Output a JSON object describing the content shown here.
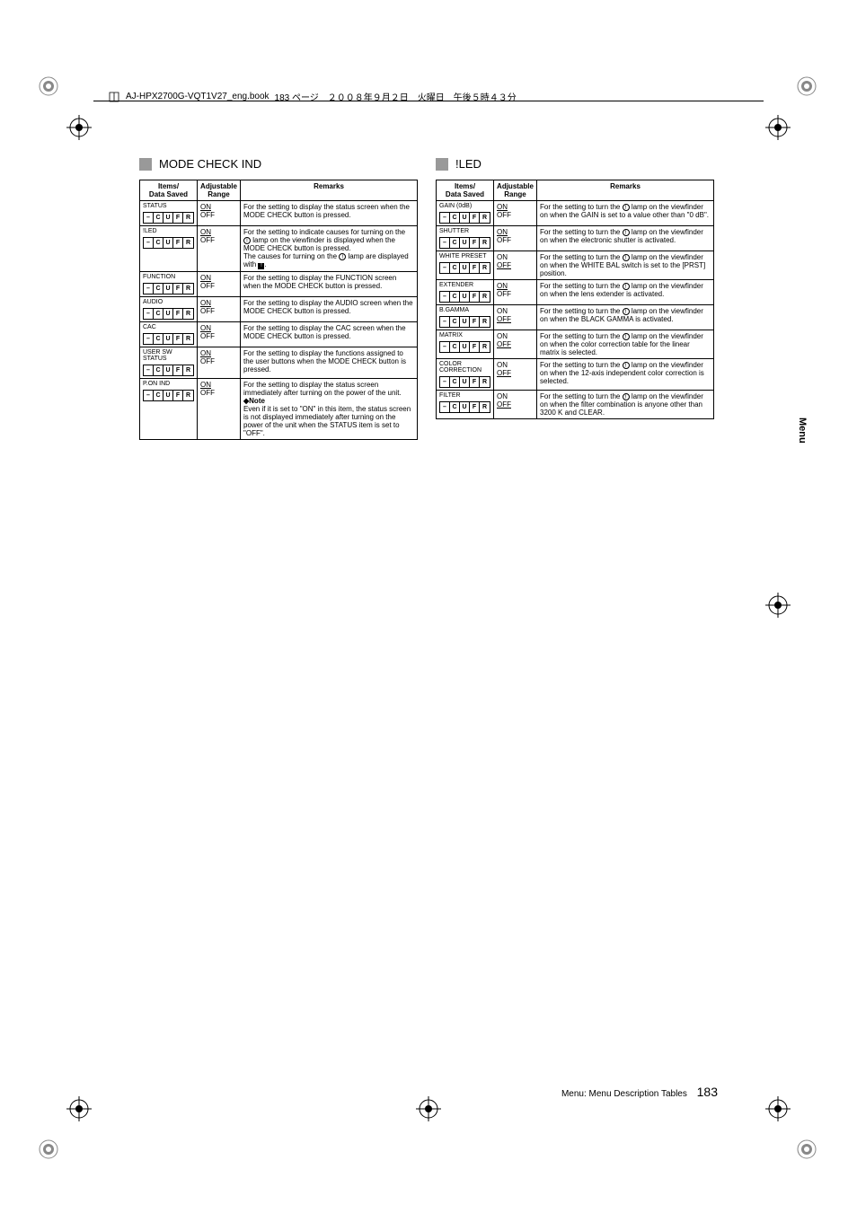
{
  "header": {
    "bookfile": "AJ-HPX2700G-VQT1V27_eng.book",
    "pageinfo": "183 ページ　２００８年９月２日　火曜日　午後５時４３分"
  },
  "sideTab": "Menu",
  "footer": {
    "text": "Menu: Menu Description Tables",
    "page": "183"
  },
  "left": {
    "title": "MODE CHECK IND",
    "headers": {
      "items": "Items/\nData Saved",
      "range": "Adjustable\nRange",
      "remarks": "Remarks"
    },
    "rows": [
      {
        "item": "STATUS",
        "rangeDefault": "ON",
        "rangeOther": "OFF",
        "remarks": "For the setting to display the status screen when the MODE CHECK button is pressed."
      },
      {
        "item": "!LED",
        "rangeDefault": "ON",
        "rangeOther": "OFF",
        "remarks": "For the setting to indicate causes for turning on the ⚠ lamp on the viewfinder is displayed when the MODE CHECK button is pressed.\nThe causes for turning on the ⚠ lamp are displayed with ▮."
      },
      {
        "item": "FUNCTION",
        "rangeDefault": "ON",
        "rangeOther": "OFF",
        "remarks": "For the setting to display the FUNCTION screen when the MODE CHECK button is pressed."
      },
      {
        "item": "AUDIO",
        "rangeDefault": "ON",
        "rangeOther": "OFF",
        "remarks": "For the setting to display the AUDIO screen when the MODE CHECK button is pressed."
      },
      {
        "item": "CAC",
        "rangeDefault": "ON",
        "rangeOther": "OFF",
        "remarks": "For the setting to display the CAC screen when the MODE CHECK button is pressed."
      },
      {
        "item": "USER SW STATUS",
        "rangeDefault": "ON",
        "rangeOther": "OFF",
        "remarks": "For the setting to display the functions assigned to the user buttons when the MODE CHECK button is pressed."
      },
      {
        "item": "P.ON IND",
        "rangeDefault": "ON",
        "rangeOther": "OFF",
        "remarks": "For the setting to display the status screen immediately after turning on the power of the unit.\n◆Note\nEven if it is set to \"ON\" in this item, the status screen is not displayed immediately after turning on the power of the unit when the STATUS item is set to \"OFF\"."
      }
    ]
  },
  "right": {
    "title": "!LED",
    "headers": {
      "items": "Items/\nData Saved",
      "range": "Adjustable\nRange",
      "remarks": "Remarks"
    },
    "rows": [
      {
        "item": "GAIN (0dB)",
        "rangeDefault": "ON",
        "rangeOther": "OFF",
        "remarks": "For the setting to turn the ⚠ lamp on the viewfinder on when the GAIN is set to a value other than \"0 dB\"."
      },
      {
        "item": "SHUTTER",
        "rangeDefault": "ON",
        "rangeOther": "OFF",
        "remarks": "For the setting to turn the ⚠ lamp on the viewfinder on when the electronic shutter is activated."
      },
      {
        "item": "WHITE PRESET",
        "rangeOther": "ON",
        "rangeDefault": "OFF",
        "remarks": "For the setting to turn the ⚠ lamp on the viewfinder on when the WHITE BAL switch is set to the [PRST] position."
      },
      {
        "item": "EXTENDER",
        "rangeDefault": "ON",
        "rangeOther": "OFF",
        "remarks": "For the setting to turn the ⚠ lamp on the viewfinder on when the lens extender is activated."
      },
      {
        "item": "B.GAMMA",
        "rangeOther": "ON",
        "rangeDefault": "OFF",
        "remarks": "For the setting to turn the ⚠ lamp on the viewfinder on when the BLACK GAMMA is activated."
      },
      {
        "item": "MATRIX",
        "rangeOther": "ON",
        "rangeDefault": "OFF",
        "remarks": "For the setting to turn the ⚠ lamp on the viewfinder on when the color correction table for the linear matrix is selected."
      },
      {
        "item": "COLOR CORRECTION",
        "rangeOther": "ON",
        "rangeDefault": "OFF",
        "remarks": "For the setting to turn the ⚠ lamp on the viewfinder on when the 12-axis independent color correction is selected."
      },
      {
        "item": "FILTER",
        "rangeOther": "ON",
        "rangeDefault": "OFF",
        "remarks": "For the setting to turn the ⚠ lamp on the viewfinder on when the filter combination is anyone other than 3200 K and CLEAR."
      }
    ]
  },
  "dataSavedCells": [
    "–",
    "C",
    "U",
    "F",
    "R"
  ]
}
